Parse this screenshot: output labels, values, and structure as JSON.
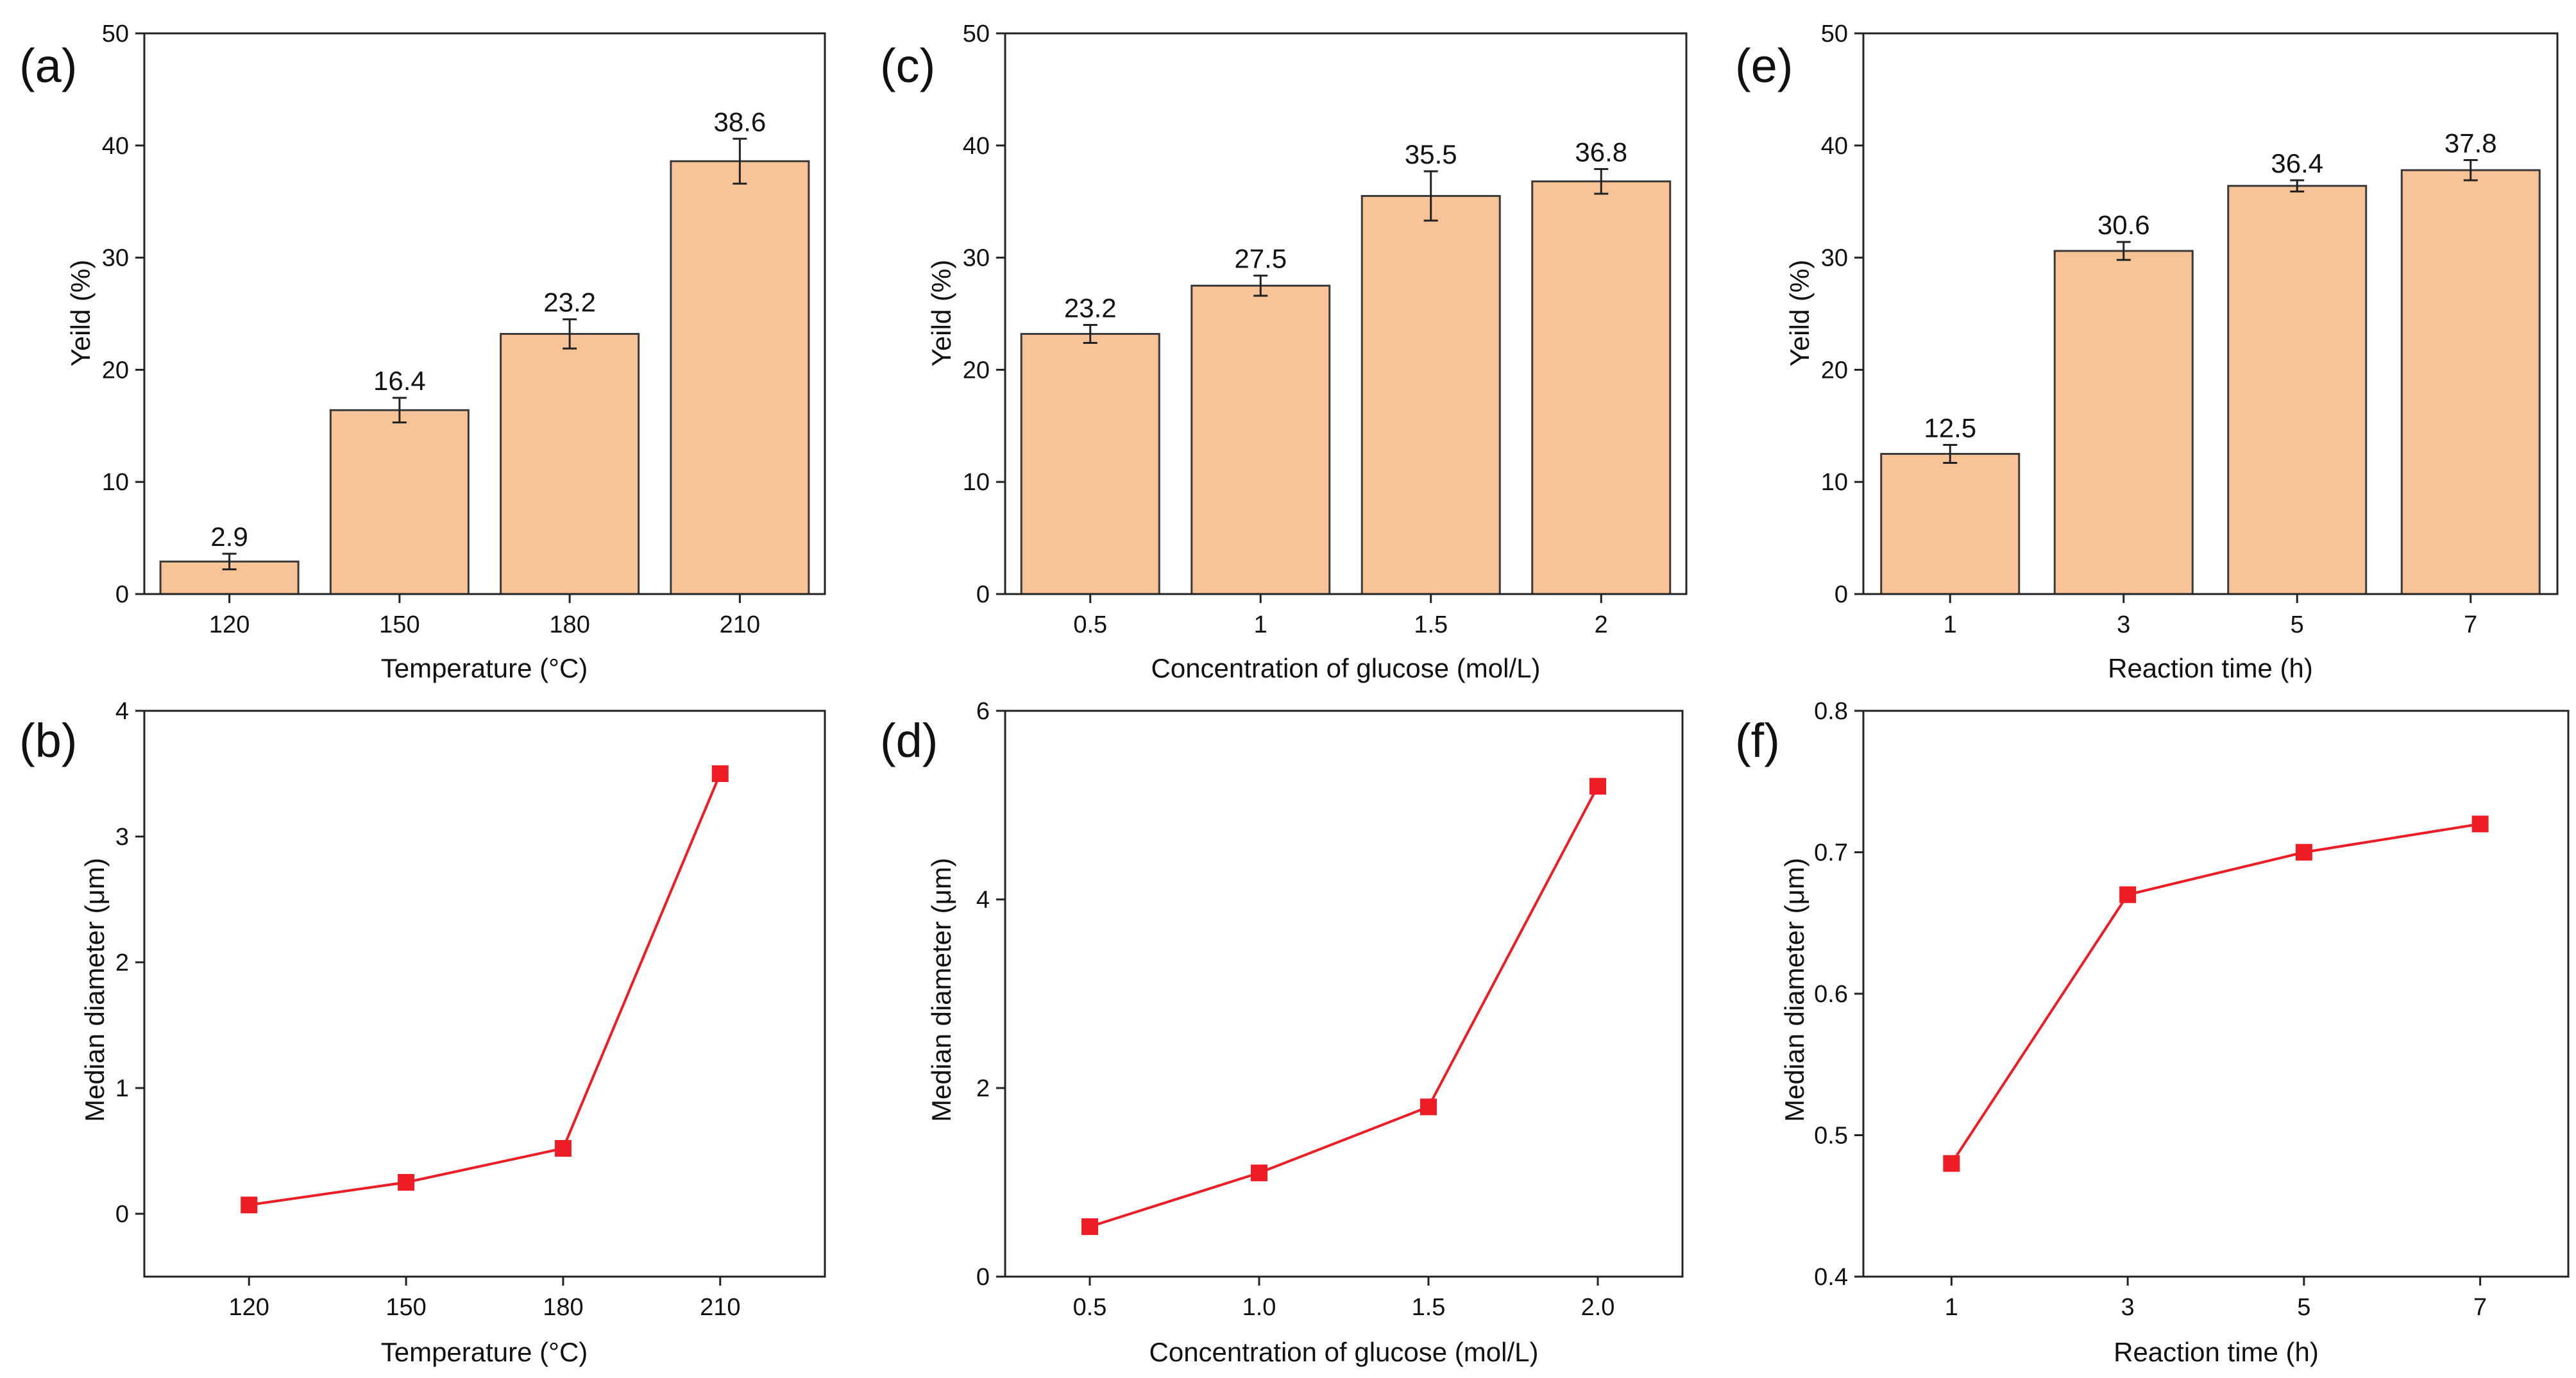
{
  "colors": {
    "bar_fill": "#f8c497",
    "bar_stroke": "#3a3a3a",
    "line_color": "#ee1c25",
    "marker_color": "#ee1c25",
    "axis_color": "#222222"
  },
  "chart_data": [
    {
      "panel": "(a)",
      "type": "bar",
      "categories": [
        "120",
        "150",
        "180",
        "210"
      ],
      "values": [
        2.9,
        16.4,
        23.2,
        38.6
      ],
      "errors": [
        0.7,
        1.1,
        1.3,
        2.0
      ],
      "data_labels": [
        "2.9",
        "16.4",
        "23.2",
        "38.6"
      ],
      "xlabel": "Temperature (°C)",
      "ylabel": "Yeild (%)",
      "ylim": [
        0,
        50
      ],
      "yticks": [
        0,
        10,
        20,
        30,
        40,
        50
      ],
      "ytick_labels": [
        "0",
        "10",
        "20",
        "30",
        "40",
        "50"
      ],
      "grid": false
    },
    {
      "panel": "(c)",
      "type": "bar",
      "categories": [
        "0.5",
        "1",
        "1.5",
        "2"
      ],
      "values": [
        23.2,
        27.5,
        35.5,
        36.8
      ],
      "errors": [
        0.8,
        0.9,
        2.2,
        1.1
      ],
      "data_labels": [
        "23.2",
        "27.5",
        "35.5",
        "36.8"
      ],
      "xlabel": "Concentration of glucose (mol/L)",
      "ylabel": "Yeild (%)",
      "ylim": [
        0,
        50
      ],
      "yticks": [
        0,
        10,
        20,
        30,
        40,
        50
      ],
      "ytick_labels": [
        "0",
        "10",
        "20",
        "30",
        "40",
        "50"
      ],
      "grid": false
    },
    {
      "panel": "(e)",
      "type": "bar",
      "categories": [
        "1",
        "3",
        "5",
        "7"
      ],
      "values": [
        12.5,
        30.6,
        36.4,
        37.8
      ],
      "errors": [
        0.8,
        0.8,
        0.5,
        0.9
      ],
      "data_labels": [
        "12.5",
        "30.6",
        "36.4",
        "37.8"
      ],
      "xlabel": "Reaction time (h)",
      "ylabel": "Yeild (%)",
      "ylim": [
        0,
        50
      ],
      "yticks": [
        0,
        10,
        20,
        30,
        40,
        50
      ],
      "ytick_labels": [
        "0",
        "10",
        "20",
        "30",
        "40",
        "50"
      ],
      "grid": false
    },
    {
      "panel": "(b)",
      "type": "line",
      "x": [
        120,
        150,
        180,
        210
      ],
      "y": [
        0.07,
        0.25,
        0.52,
        3.5
      ],
      "xlabel": "Temperature (°C)",
      "ylabel": "Median diameter (μm)",
      "xlim": [
        100,
        230
      ],
      "ylim": [
        -0.5,
        4
      ],
      "xticks": [
        120,
        150,
        180,
        210
      ],
      "xtick_labels": [
        "120",
        "150",
        "180",
        "210"
      ],
      "yticks": [
        0,
        1,
        2,
        3,
        4
      ],
      "ytick_labels": [
        "0",
        "1",
        "2",
        "3",
        "4"
      ],
      "marker": "square",
      "grid": false
    },
    {
      "panel": "(d)",
      "type": "line",
      "x": [
        0.5,
        1.0,
        1.5,
        2.0
      ],
      "y": [
        0.53,
        1.1,
        1.8,
        5.2
      ],
      "xlabel": "Concentration of glucose (mol/L)",
      "ylabel": "Median diameter (μm)",
      "xlim": [
        0.25,
        2.25
      ],
      "ylim": [
        0,
        6
      ],
      "xticks": [
        0.5,
        1.0,
        1.5,
        2.0
      ],
      "xtick_labels": [
        "0.5",
        "1.0",
        "1.5",
        "2.0"
      ],
      "yticks": [
        0,
        2,
        4,
        6
      ],
      "ytick_labels": [
        "0",
        "2",
        "4",
        "6"
      ],
      "marker": "square",
      "grid": false
    },
    {
      "panel": "(f)",
      "type": "line",
      "x": [
        1,
        3,
        5,
        7
      ],
      "y": [
        0.48,
        0.67,
        0.7,
        0.72
      ],
      "xlabel": "Reaction time (h)",
      "ylabel": "Median diameter (μm)",
      "xlim": [
        0,
        8
      ],
      "ylim": [
        0.4,
        0.8
      ],
      "xticks": [
        1,
        3,
        5,
        7
      ],
      "xtick_labels": [
        "1",
        "3",
        "5",
        "7"
      ],
      "yticks": [
        0.4,
        0.5,
        0.6,
        0.7,
        0.8
      ],
      "ytick_labels": [
        "0.4",
        "0.5",
        "0.6",
        "0.7",
        "0.8"
      ],
      "marker": "square",
      "grid": false
    }
  ]
}
